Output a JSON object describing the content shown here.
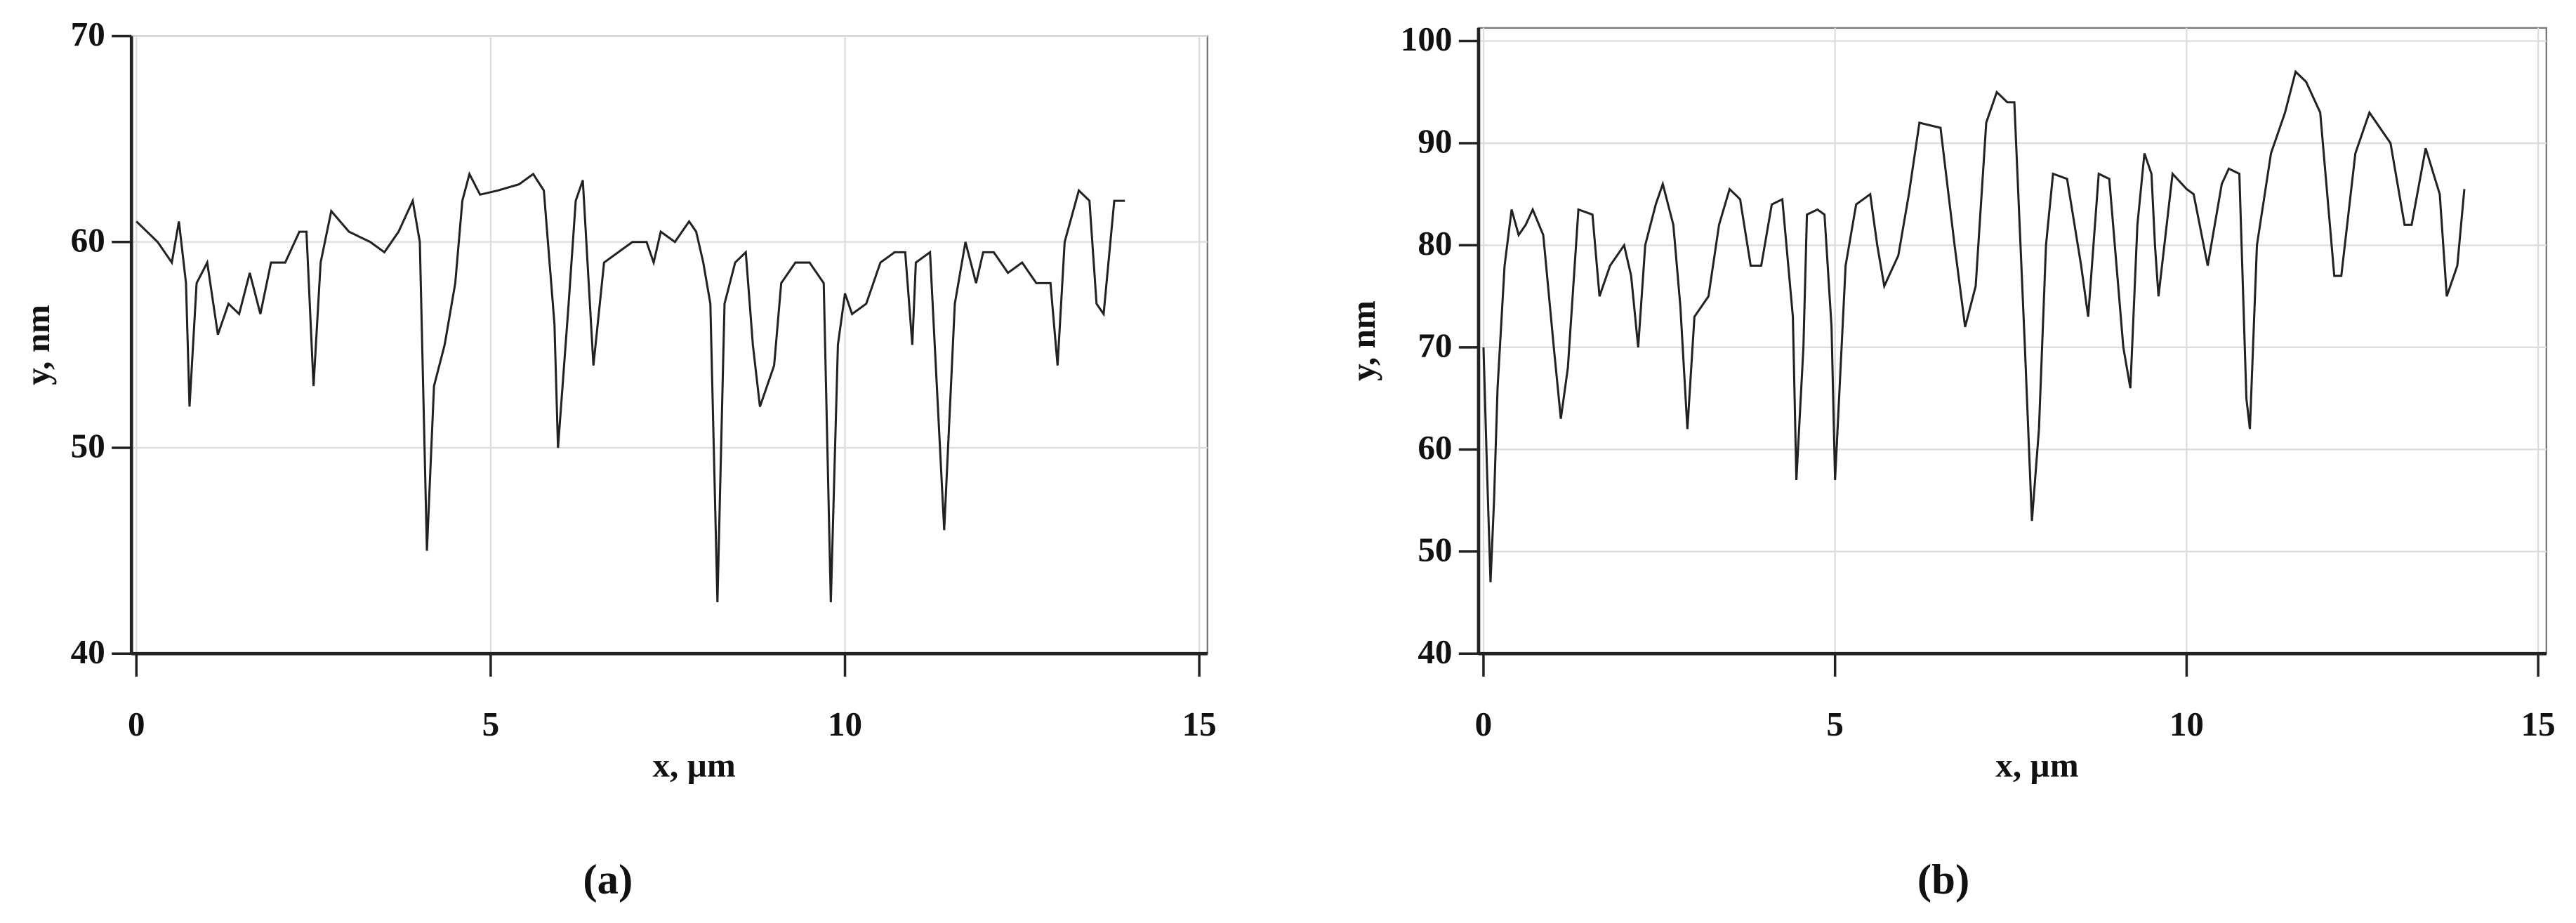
{
  "chart_data": [
    {
      "type": "line",
      "caption": "(a)",
      "xlabel": "x, µm",
      "ylabel": "y, nm",
      "color": "#222222",
      "grid": true,
      "xlim": [
        0,
        15
      ],
      "ylim": [
        40,
        70
      ],
      "xticks": [
        0,
        5,
        10,
        15
      ],
      "yticks": [
        40,
        50,
        60,
        70
      ],
      "x": [
        0,
        0.3,
        0.5,
        0.6,
        0.7,
        0.75,
        0.85,
        1.0,
        1.15,
        1.3,
        1.45,
        1.6,
        1.75,
        1.9,
        2.1,
        2.3,
        2.4,
        2.5,
        2.6,
        2.75,
        3.0,
        3.3,
        3.5,
        3.7,
        3.9,
        4.0,
        4.1,
        4.2,
        4.35,
        4.5,
        4.6,
        4.7,
        4.85,
        5.1,
        5.4,
        5.6,
        5.75,
        5.9,
        5.95,
        6.1,
        6.2,
        6.3,
        6.4,
        6.45,
        6.6,
        6.8,
        7.0,
        7.2,
        7.3,
        7.4,
        7.6,
        7.8,
        7.9,
        8.0,
        8.1,
        8.2,
        8.3,
        8.45,
        8.6,
        8.7,
        8.8,
        9.0,
        9.1,
        9.3,
        9.5,
        9.7,
        9.8,
        9.9,
        10.0,
        10.1,
        10.3,
        10.5,
        10.7,
        10.85,
        10.95,
        11.0,
        11.2,
        11.4,
        11.55,
        11.7,
        11.85,
        11.95,
        12.1,
        12.3,
        12.5,
        12.7,
        12.9,
        13.0,
        13.1,
        13.3,
        13.45,
        13.55,
        13.65,
        13.8,
        13.95
      ],
      "values": [
        61,
        60,
        59,
        61,
        58,
        52,
        58,
        59,
        55.5,
        57,
        56.5,
        58.5,
        56.5,
        59,
        59,
        60.5,
        60.5,
        53,
        59,
        61.5,
        60.5,
        60,
        59.5,
        60.5,
        62,
        60,
        45,
        53,
        55,
        58,
        62,
        63.3,
        62.3,
        62.5,
        62.8,
        63.3,
        62.5,
        56,
        50,
        57,
        62,
        63,
        57,
        54,
        59,
        59.5,
        60,
        60,
        59,
        60.5,
        60,
        61,
        60.5,
        59,
        57,
        42.5,
        57,
        59,
        59.5,
        55,
        52,
        54,
        58,
        59,
        59,
        58,
        42.5,
        55,
        57.5,
        56.5,
        57,
        59,
        59.5,
        59.5,
        55,
        59,
        59.5,
        46,
        57,
        60,
        58,
        59.5,
        59.5,
        58.5,
        59,
        58,
        58,
        54,
        60,
        62.5,
        62,
        57,
        56.5,
        62,
        62
      ]
    },
    {
      "type": "line",
      "caption": "(b)",
      "xlabel": "x, µm",
      "ylabel": "y, nm",
      "color": "#222222",
      "grid": true,
      "xlim": [
        0,
        15
      ],
      "ylim": [
        40,
        100
      ],
      "xticks": [
        0,
        5,
        10,
        15
      ],
      "yticks": [
        40,
        50,
        60,
        70,
        80,
        90,
        100
      ],
      "x": [
        0,
        0.05,
        0.1,
        0.15,
        0.2,
        0.3,
        0.4,
        0.5,
        0.6,
        0.7,
        0.85,
        1.0,
        1.1,
        1.2,
        1.35,
        1.55,
        1.65,
        1.8,
        2.0,
        2.1,
        2.2,
        2.3,
        2.45,
        2.55,
        2.7,
        2.8,
        2.9,
        3.0,
        3.2,
        3.35,
        3.5,
        3.65,
        3.8,
        3.95,
        4.1,
        4.25,
        4.4,
        4.45,
        4.55,
        4.6,
        4.75,
        4.85,
        4.95,
        5.0,
        5.05,
        5.15,
        5.3,
        5.5,
        5.6,
        5.7,
        5.9,
        6.05,
        6.2,
        6.5,
        6.7,
        6.85,
        7.0,
        7.15,
        7.3,
        7.45,
        7.55,
        7.7,
        7.8,
        7.9,
        8.0,
        8.1,
        8.3,
        8.5,
        8.6,
        8.75,
        8.9,
        9.1,
        9.2,
        9.3,
        9.4,
        9.5,
        9.55,
        9.6,
        9.8,
        10.0,
        10.1,
        10.3,
        10.5,
        10.6,
        10.75,
        10.85,
        10.9,
        11.0,
        11.2,
        11.4,
        11.55,
        11.7,
        11.9,
        12.1,
        12.2,
        12.4,
        12.6,
        12.9,
        13.1,
        13.2,
        13.4,
        13.6,
        13.7,
        13.85,
        13.95
      ],
      "values": [
        70,
        58,
        47,
        55,
        66,
        78,
        83.5,
        81,
        82,
        83.5,
        81,
        70,
        63,
        68,
        83.5,
        83,
        75,
        78,
        80,
        77,
        70,
        80,
        84,
        86,
        82,
        74,
        62,
        73,
        75,
        82,
        85.5,
        84.5,
        78,
        78,
        84,
        84.5,
        73,
        57,
        70,
        83,
        83.5,
        83,
        72,
        57,
        64,
        78,
        84,
        85,
        80,
        76,
        79,
        85,
        92,
        91.5,
        80,
        72,
        76,
        92,
        95,
        94,
        94,
        70,
        53,
        62,
        80,
        87,
        86.5,
        78,
        73,
        87,
        86.5,
        70,
        66,
        82,
        89,
        87,
        80,
        75,
        87,
        85.5,
        85,
        78,
        86,
        87.5,
        87,
        65,
        62,
        80,
        89,
        93,
        97,
        96,
        93,
        77,
        77,
        89,
        93,
        90,
        82,
        82,
        89.5,
        85,
        75,
        78,
        85.5
      ]
    }
  ]
}
